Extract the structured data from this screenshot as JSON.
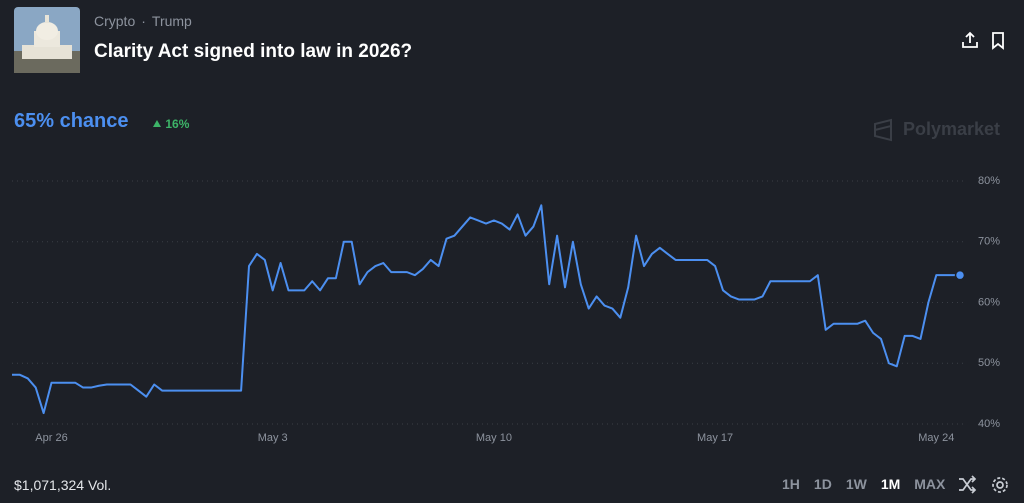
{
  "header": {
    "breadcrumb": [
      "Crypto",
      "·",
      "Trump"
    ],
    "title": "Clarity Act signed into law in 2026?"
  },
  "summary": {
    "chance": "65% chance",
    "change": "16%",
    "brand": "Polymarket"
  },
  "footer": {
    "volume": "$1,071,324 Vol.",
    "ranges": [
      "1H",
      "1D",
      "1W",
      "1M",
      "MAX"
    ]
  },
  "chart_data": {
    "type": "line",
    "color": "#4c8ff0",
    "categories": [
      null,
      null,
      null,
      null,
      null,
      "Apr 26",
      null,
      null,
      null,
      null,
      null,
      null,
      null,
      null,
      null,
      null,
      null,
      null,
      null,
      null,
      null,
      null,
      null,
      null,
      null,
      null,
      null,
      null,
      null,
      null,
      null,
      null,
      null,
      "May 3",
      null,
      null,
      null,
      null,
      null,
      null,
      null,
      null,
      null,
      null,
      null,
      null,
      null,
      null,
      null,
      null,
      null,
      null,
      null,
      null,
      null,
      null,
      null,
      null,
      null,
      null,
      null,
      "May 10",
      null,
      null,
      null,
      null,
      null,
      null,
      null,
      null,
      null,
      null,
      null,
      null,
      null,
      null,
      null,
      null,
      null,
      null,
      null,
      null,
      null,
      null,
      null,
      null,
      null,
      null,
      null,
      "May 17",
      null,
      null,
      null,
      null,
      null,
      null,
      null,
      null,
      null,
      null,
      null,
      null,
      null,
      null,
      null,
      null,
      null,
      null,
      null,
      null,
      null,
      null,
      null,
      null,
      null,
      null,
      null,
      "May 24",
      null,
      null,
      null
    ],
    "values": [
      48.1,
      48.1,
      47.5,
      46,
      41.8,
      46.8,
      46.8,
      46.8,
      46.8,
      46,
      46,
      46.3,
      46.5,
      46.5,
      46.5,
      46.5,
      45.5,
      44.5,
      46.5,
      45.5,
      45.5,
      45.5,
      45.5,
      45.5,
      45.5,
      45.5,
      45.5,
      45.5,
      45.5,
      45.5,
      66,
      68,
      67,
      62,
      66.5,
      62,
      62,
      62,
      63.5,
      62,
      64,
      64,
      70,
      70,
      63,
      65,
      66,
      66.5,
      65,
      65,
      65,
      64.5,
      65.5,
      67,
      66,
      70.5,
      71,
      72.5,
      74,
      73.5,
      73,
      73.5,
      73,
      72,
      74.5,
      71,
      72.5,
      76,
      63,
      71,
      62.5,
      70,
      63,
      59,
      61,
      59.5,
      59,
      57.5,
      62.5,
      71,
      66,
      68,
      69,
      68,
      67,
      67,
      67,
      67,
      67,
      66,
      62,
      61,
      60.5,
      60.5,
      60.5,
      61,
      63.5,
      63.5,
      63.5,
      63.5,
      63.5,
      63.5,
      64.5,
      55.5,
      56.5,
      56.5,
      56.5,
      56.5,
      57,
      55,
      54,
      50,
      49.5,
      54.5,
      54.5,
      54,
      60,
      64.5,
      64.5,
      64.5,
      64.5
    ],
    "ylim": [
      40,
      80
    ],
    "yticks": [
      {
        "value": 40,
        "label": "40%"
      },
      {
        "value": 50,
        "label": "50%"
      },
      {
        "value": 60,
        "label": "60%"
      },
      {
        "value": 70,
        "label": "70%"
      },
      {
        "value": 80,
        "label": "80%"
      }
    ],
    "grid": true
  }
}
